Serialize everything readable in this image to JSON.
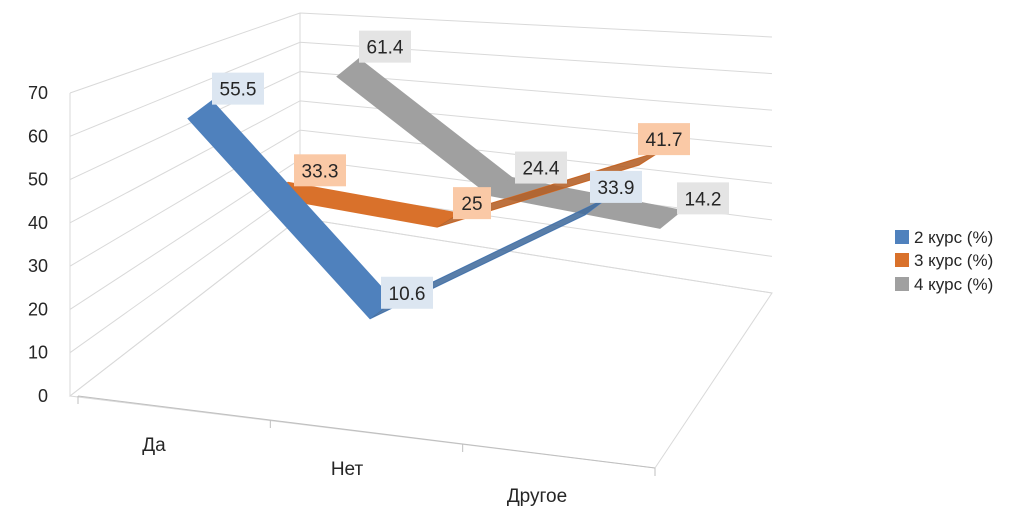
{
  "chart_data": {
    "type": "line",
    "style": "3d",
    "categories": [
      "Да",
      "Нет",
      "Другое"
    ],
    "series": [
      {
        "name": "2 курс (%)",
        "values": [
          55.5,
          10.6,
          33.9
        ],
        "color": "#4F81BD",
        "label_bg": "#DCE6F1"
      },
      {
        "name": "3 курс (%)",
        "values": [
          33.3,
          25,
          41.7
        ],
        "color": "#D9712B",
        "label_bg": "#FAC9A6"
      },
      {
        "name": "4 курс (%)",
        "values": [
          61.4,
          24.4,
          14.2
        ],
        "color": "#A0A0A0",
        "label_bg": "#E4E4E4"
      }
    ],
    "yticks": [
      "0",
      "10",
      "20",
      "30",
      "40",
      "50",
      "60",
      "70"
    ],
    "ylim": [
      0,
      70
    ],
    "grid": true,
    "legend_position": "right"
  }
}
